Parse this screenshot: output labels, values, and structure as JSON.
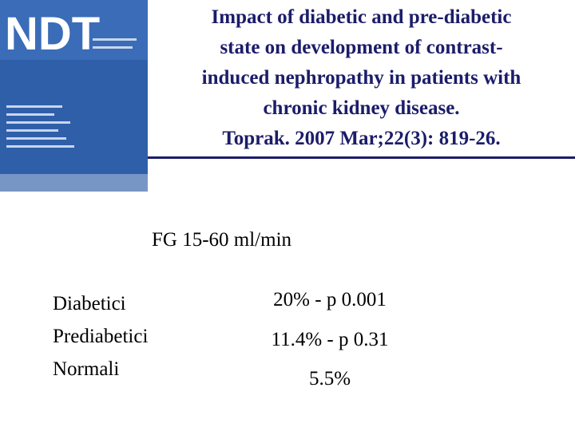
{
  "cover": {
    "logo": "NDT"
  },
  "title": {
    "lines": [
      "Impact of diabetic and pre-diabetic",
      "state on development of contrast-",
      "induced nephropathy in patients with",
      "chronic kidney disease.",
      "Toprak. 2007 Mar;22(3): 819-26."
    ]
  },
  "subtitle": "FG 15-60 ml/min",
  "table": {
    "rows": [
      [
        "Diabetici",
        "20% - p 0.001"
      ],
      [
        "Prediabetici",
        "11.4% - p 0.31"
      ],
      [
        "Normali",
        "5.5%"
      ]
    ]
  }
}
